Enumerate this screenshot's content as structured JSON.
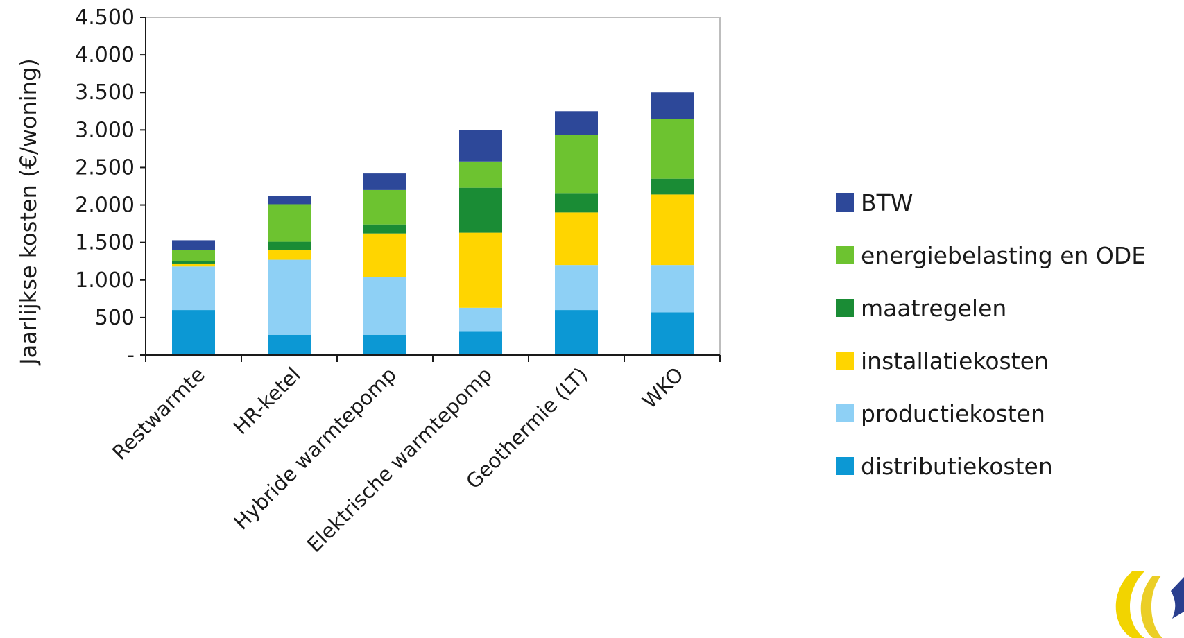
{
  "chart_data": {
    "type": "bar",
    "stacked": true,
    "title": "",
    "xlabel": "",
    "ylabel": "Jaarlijkse kosten (€/woning)",
    "ylim": [
      0,
      4500
    ],
    "yticks": [
      0,
      500,
      1000,
      1500,
      2000,
      2500,
      3000,
      3500,
      4000,
      4500
    ],
    "ytick_labels": [
      "-",
      "500",
      "1.000",
      "1.500",
      "2.000",
      "2.500",
      "3.000",
      "3.500",
      "4.000",
      "4.500"
    ],
    "grid": false,
    "legend_position": "right",
    "categories": [
      "Restwarmte",
      "HR-ketel",
      "Hybride warmtepomp",
      "Elektrische warmtepomp",
      "Geothermie (LT)",
      "WKO"
    ],
    "series": [
      {
        "name": "distributiekosten",
        "color": "#0c98d4",
        "values": [
          600,
          270,
          270,
          310,
          600,
          570
        ]
      },
      {
        "name": "productiekosten",
        "color": "#8ed0f5",
        "values": [
          580,
          1000,
          770,
          320,
          600,
          630
        ]
      },
      {
        "name": "installatiekosten",
        "color": "#ffd500",
        "values": [
          40,
          130,
          580,
          1000,
          700,
          940
        ]
      },
      {
        "name": "maatregelen",
        "color": "#1a8c35",
        "values": [
          30,
          110,
          120,
          600,
          250,
          210
        ]
      },
      {
        "name": "energiebelasting en ODE",
        "color": "#6dc330",
        "values": [
          150,
          500,
          460,
          350,
          780,
          800
        ]
      },
      {
        "name": "BTW",
        "color": "#2d4899",
        "values": [
          130,
          110,
          220,
          420,
          320,
          350
        ]
      }
    ]
  },
  "logo": {
    "name": "ce-delft-logo"
  }
}
